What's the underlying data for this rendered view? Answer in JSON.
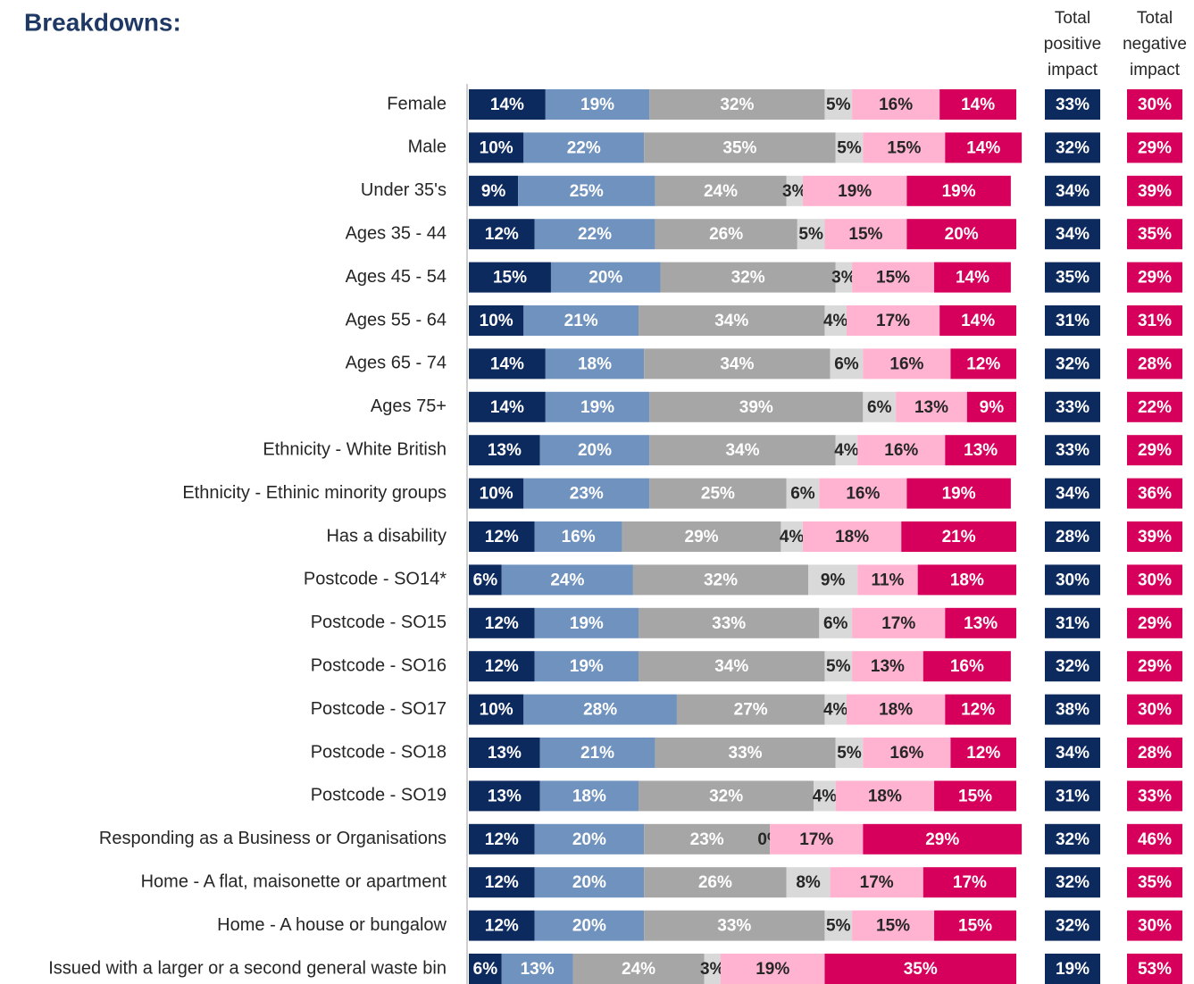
{
  "chart_data": {
    "type": "stacked-bar-horizontal",
    "title": "Breakdowns:",
    "categories": [
      "Female",
      "Male",
      "Under 35's",
      "Ages 35 - 44",
      "Ages 45 - 54",
      "Ages 55 - 64",
      "Ages 65 - 74",
      "Ages 75+",
      "Ethnicity - White British",
      "Ethnicity - Ethinic minority groups",
      "Has a disability",
      "Postcode - SO14*",
      "Postcode - SO15",
      "Postcode - SO16",
      "Postcode - SO17",
      "Postcode - SO18",
      "Postcode - SO19",
      "Responding as a Business or Organisations",
      "Home - A flat, maisonette or apartment",
      "Home - A house or bungalow",
      "Issued with a larger or a second general waste bin"
    ],
    "xlim": [
      0,
      100
    ],
    "series": [
      {
        "color": "#0d2a5e",
        "label_color": "#ffffff",
        "values": [
          14,
          10,
          9,
          12,
          15,
          10,
          14,
          14,
          13,
          10,
          12,
          6,
          12,
          12,
          10,
          13,
          13,
          12,
          12,
          12,
          6
        ],
        "value_labels": [
          "14%",
          "10%",
          "9%",
          "12%",
          "15%",
          "10%",
          "14%",
          "14%",
          "13%",
          "10%",
          "12%",
          "6%",
          "12%",
          "12%",
          "10%",
          "13%",
          "13%",
          "12%",
          "12%",
          "12%",
          "6%"
        ]
      },
      {
        "color": "#7092be",
        "label_color": "#ffffff",
        "values": [
          19,
          22,
          25,
          22,
          20,
          21,
          18,
          19,
          20,
          23,
          16,
          24,
          19,
          19,
          28,
          21,
          18,
          20,
          20,
          20,
          13
        ],
        "value_labels": [
          "19%",
          "22%",
          "25%",
          "22%",
          "20%",
          "21%",
          "18%",
          "19%",
          "20%",
          "23%",
          "16%",
          "24%",
          "19%",
          "19%",
          "28%",
          "21%",
          "18%",
          "20%",
          "20%",
          "20%",
          "13%"
        ]
      },
      {
        "color": "#a6a6a6",
        "label_color": "#ffffff",
        "values": [
          32,
          35,
          24,
          26,
          32,
          34,
          34,
          39,
          34,
          25,
          29,
          32,
          33,
          34,
          27,
          33,
          32,
          23,
          26,
          33,
          24
        ],
        "value_labels": [
          "32%",
          "35%",
          "24%",
          "26%",
          "32%",
          "34%",
          "34%",
          "39%",
          "34%",
          "25%",
          "29%",
          "32%",
          "33%",
          "34%",
          "27%",
          "33%",
          "32%",
          "23%",
          "26%",
          "33%",
          "24%"
        ]
      },
      {
        "color": "#d9d9d9",
        "label_color": "#262626",
        "values": [
          5,
          5,
          3,
          5,
          3,
          4,
          6,
          6,
          4,
          6,
          4,
          9,
          6,
          5,
          4,
          5,
          4,
          0,
          8,
          5,
          3
        ],
        "value_labels": [
          "5%",
          "5%",
          "3%",
          "5%",
          "3%",
          "4%",
          "6%",
          "6%",
          "4%",
          "6%",
          "4%",
          "9%",
          "6%",
          "5%",
          "4%",
          "5%",
          "4%",
          "0%",
          "8%",
          "5%",
          "3%"
        ]
      },
      {
        "color": "#ffb3d1",
        "label_color": "#262626",
        "values": [
          16,
          15,
          19,
          15,
          15,
          17,
          16,
          13,
          16,
          16,
          18,
          11,
          17,
          13,
          18,
          16,
          18,
          17,
          17,
          15,
          19
        ],
        "value_labels": [
          "16%",
          "15%",
          "19%",
          "15%",
          "15%",
          "17%",
          "16%",
          "13%",
          "16%",
          "16%",
          "18%",
          "11%",
          "17%",
          "13%",
          "18%",
          "16%",
          "18%",
          "17%",
          "17%",
          "15%",
          "19%"
        ]
      },
      {
        "color": "#d6005c",
        "label_color": "#ffffff",
        "values": [
          14,
          14,
          19,
          20,
          14,
          14,
          12,
          9,
          13,
          19,
          21,
          18,
          13,
          16,
          12,
          12,
          15,
          29,
          17,
          15,
          35
        ],
        "value_labels": [
          "14%",
          "14%",
          "19%",
          "20%",
          "14%",
          "14%",
          "12%",
          "9%",
          "13%",
          "19%",
          "21%",
          "18%",
          "13%",
          "16%",
          "12%",
          "12%",
          "15%",
          "29%",
          "17%",
          "15%",
          "35%"
        ]
      }
    ],
    "totals": [
      {
        "name": "Total positive impact",
        "color": "#0d2a5e",
        "values": [
          33,
          32,
          34,
          34,
          35,
          31,
          32,
          33,
          33,
          34,
          28,
          30,
          31,
          32,
          38,
          34,
          31,
          32,
          32,
          32,
          19
        ],
        "value_labels": [
          "33%",
          "32%",
          "34%",
          "34%",
          "35%",
          "31%",
          "32%",
          "33%",
          "33%",
          "34%",
          "28%",
          "30%",
          "31%",
          "32%",
          "38%",
          "34%",
          "31%",
          "32%",
          "32%",
          "32%",
          "19%"
        ]
      },
      {
        "name": "Total negative impact",
        "color": "#d6005c",
        "values": [
          30,
          29,
          39,
          35,
          29,
          31,
          28,
          22,
          29,
          36,
          39,
          30,
          29,
          29,
          30,
          28,
          33,
          46,
          35,
          30,
          53
        ],
        "value_labels": [
          "30%",
          "29%",
          "39%",
          "35%",
          "29%",
          "31%",
          "28%",
          "22%",
          "29%",
          "36%",
          "39%",
          "30%",
          "29%",
          "29%",
          "30%",
          "28%",
          "33%",
          "46%",
          "35%",
          "30%",
          "53%"
        ]
      }
    ]
  }
}
